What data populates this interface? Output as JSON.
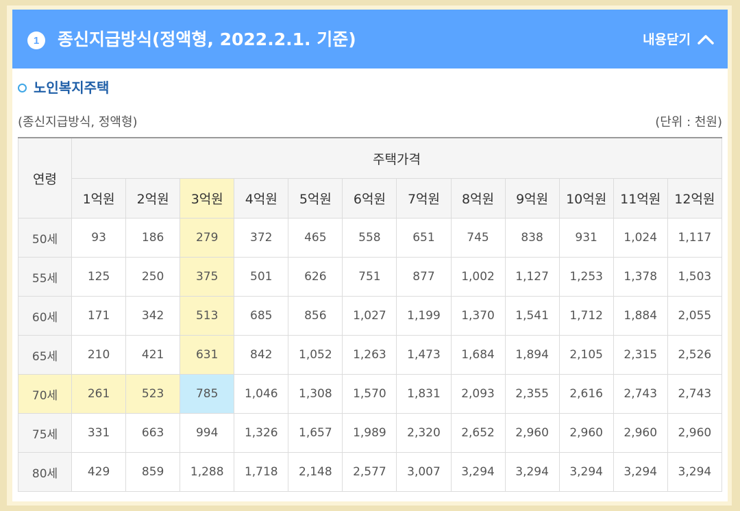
{
  "header": {
    "badge": "1",
    "title": "종신지급방식(정액형, 2022.2.1. 기준)",
    "close_label": "내용닫기"
  },
  "section": {
    "title": "노인복지주택",
    "caption_left": "(종신지급방식, 정액형)",
    "caption_right": "(단위 : 천원)"
  },
  "table": {
    "age_header": "연령",
    "price_header": "주택가격",
    "columns": [
      "1억원",
      "2억원",
      "3억원",
      "4억원",
      "5억원",
      "6억원",
      "7억원",
      "8억원",
      "9억원",
      "10억원",
      "11억원",
      "12억원"
    ],
    "rows": [
      {
        "age": "50세",
        "values": [
          "93",
          "186",
          "279",
          "372",
          "465",
          "558",
          "651",
          "745",
          "838",
          "931",
          "1,024",
          "1,117"
        ]
      },
      {
        "age": "55세",
        "values": [
          "125",
          "250",
          "375",
          "501",
          "626",
          "751",
          "877",
          "1,002",
          "1,127",
          "1,253",
          "1,378",
          "1,503"
        ]
      },
      {
        "age": "60세",
        "values": [
          "171",
          "342",
          "513",
          "685",
          "856",
          "1,027",
          "1,199",
          "1,370",
          "1,541",
          "1,712",
          "1,884",
          "2,055"
        ]
      },
      {
        "age": "65세",
        "values": [
          "210",
          "421",
          "631",
          "842",
          "1,052",
          "1,263",
          "1,473",
          "1,684",
          "1,894",
          "2,105",
          "2,315",
          "2,526"
        ]
      },
      {
        "age": "70세",
        "values": [
          "261",
          "523",
          "785",
          "1,046",
          "1,308",
          "1,570",
          "1,831",
          "2,093",
          "2,355",
          "2,616",
          "2,743",
          "2,743"
        ]
      },
      {
        "age": "75세",
        "values": [
          "331",
          "663",
          "994",
          "1,326",
          "1,657",
          "1,989",
          "2,320",
          "2,652",
          "2,960",
          "2,960",
          "2,960",
          "2,960"
        ]
      },
      {
        "age": "80세",
        "values": [
          "429",
          "859",
          "1,288",
          "1,718",
          "2,148",
          "2,577",
          "3,007",
          "3,294",
          "3,294",
          "3,294",
          "3,294",
          "3,294"
        ]
      }
    ],
    "highlight_column_index": 2,
    "highlight_row_index": 4
  },
  "colors": {
    "header_bg": "#5aa4ff",
    "highlight_yellow": "#fdf6c3",
    "highlight_blue": "#c7ecfb",
    "subtitle": "#1f5fa8"
  },
  "icons": {
    "close": "chevron-up-icon",
    "bullet": "circle-bullet-icon"
  }
}
